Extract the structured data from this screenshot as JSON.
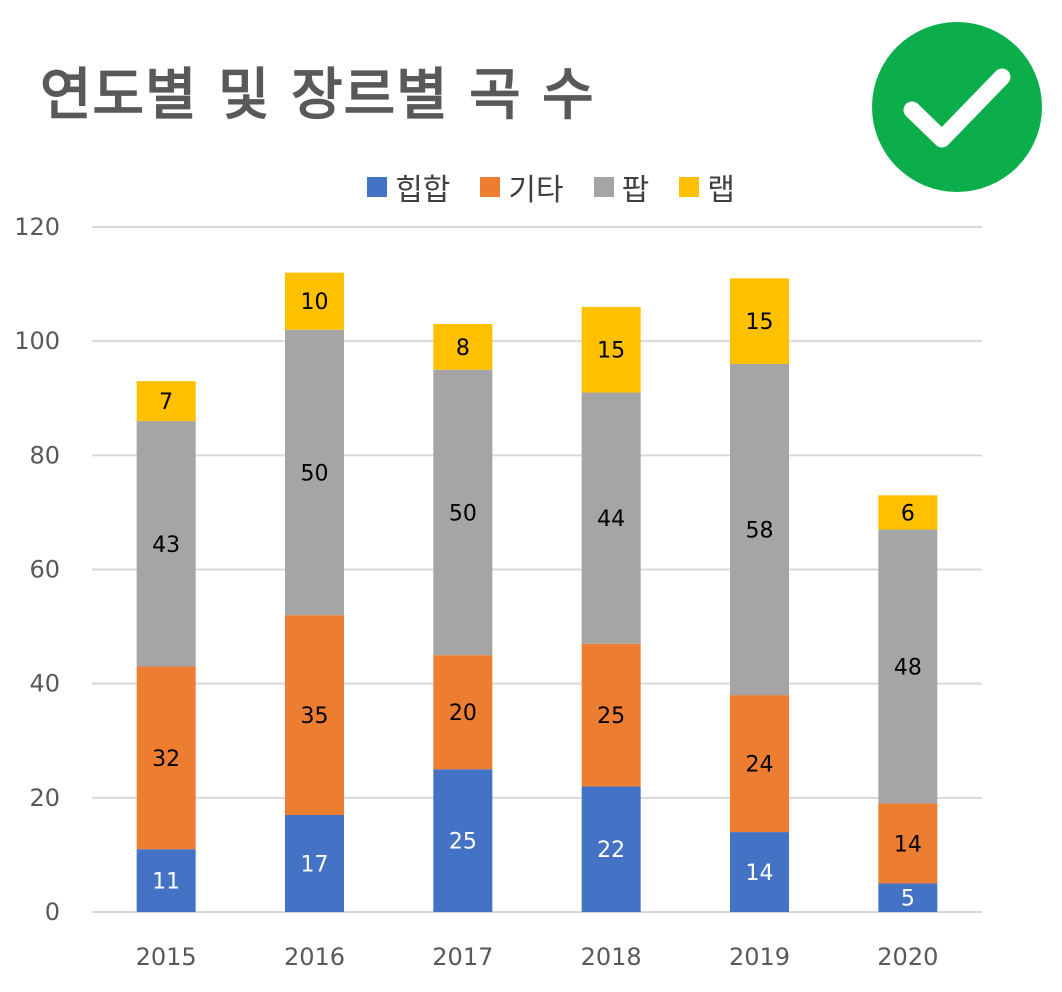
{
  "title": "연도별 및 장르별 곡 수",
  "badge": {
    "icon": "check-circle-icon",
    "color": "#0BAE4A"
  },
  "chart_data": {
    "type": "bar",
    "stacked": true,
    "title": "연도별 및 장르별 곡 수",
    "categories": [
      "2015",
      "2016",
      "2017",
      "2018",
      "2019",
      "2020"
    ],
    "series": [
      {
        "name": "힙합",
        "color": "#4472C4",
        "label_color": "#FFFFFF",
        "values": [
          11,
          17,
          25,
          22,
          14,
          5
        ]
      },
      {
        "name": "기타",
        "color": "#ED7D31",
        "label_color": "#000000",
        "values": [
          32,
          35,
          20,
          25,
          24,
          14
        ]
      },
      {
        "name": "팝",
        "color": "#A5A5A5",
        "label_color": "#000000",
        "values": [
          43,
          50,
          50,
          44,
          58,
          48
        ]
      },
      {
        "name": "랩",
        "color": "#FFC000",
        "label_color": "#000000",
        "values": [
          7,
          10,
          8,
          15,
          15,
          6
        ]
      }
    ],
    "ylim": [
      0,
      120
    ],
    "yticks": [
      "0",
      "20",
      "40",
      "60",
      "80",
      "100",
      "120"
    ],
    "xlabel": "",
    "ylabel": "",
    "grid": true,
    "legend": "top"
  }
}
